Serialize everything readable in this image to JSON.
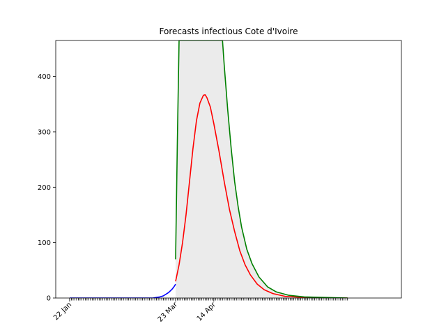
{
  "chart_data": {
    "type": "line",
    "title": "Forecasts infectious Cote d'Ivoire",
    "xlabel": "",
    "ylabel": "",
    "x_ticks": [
      {
        "label": "22 Jan",
        "date": "2020-01-22"
      },
      {
        "label": "23 Mar",
        "date": "2020-03-23"
      },
      {
        "label": "14 Apr",
        "date": "2020-04-14"
      }
    ],
    "xlim": [
      "2020-01-14",
      "2020-07-31"
    ],
    "ylim": [
      0,
      465
    ],
    "y_ticks": [
      0,
      100,
      200,
      300,
      400
    ],
    "grid": false,
    "legend": "none",
    "series": [
      {
        "color": "#0000ff",
        "style": "observed",
        "points": [
          [
            "2020-01-22",
            0
          ],
          [
            "2020-02-15",
            0
          ],
          [
            "2020-03-01",
            0
          ],
          [
            "2020-03-10",
            0
          ],
          [
            "2020-03-12",
            1
          ],
          [
            "2020-03-14",
            2
          ],
          [
            "2020-03-16",
            4
          ],
          [
            "2020-03-17",
            6
          ],
          [
            "2020-03-18",
            8
          ],
          [
            "2020-03-19",
            10
          ],
          [
            "2020-03-20",
            13
          ],
          [
            "2020-03-21",
            16
          ],
          [
            "2020-03-22",
            20
          ],
          [
            "2020-03-23",
            25
          ]
        ]
      },
      {
        "color": "#ff0000",
        "style": "forecast",
        "points": [
          [
            "2020-03-23",
            30
          ],
          [
            "2020-03-25",
            60
          ],
          [
            "2020-03-27",
            100
          ],
          [
            "2020-03-29",
            150
          ],
          [
            "2020-03-31",
            210
          ],
          [
            "2020-04-02",
            270
          ],
          [
            "2020-04-04",
            320
          ],
          [
            "2020-04-06",
            352
          ],
          [
            "2020-04-08",
            366
          ],
          [
            "2020-04-09",
            367
          ],
          [
            "2020-04-10",
            362
          ],
          [
            "2020-04-12",
            345
          ],
          [
            "2020-04-14",
            315
          ],
          [
            "2020-04-17",
            265
          ],
          [
            "2020-04-20",
            210
          ],
          [
            "2020-04-23",
            160
          ],
          [
            "2020-04-26",
            120
          ],
          [
            "2020-04-29",
            85
          ],
          [
            "2020-05-02",
            60
          ],
          [
            "2020-05-05",
            42
          ],
          [
            "2020-05-09",
            25
          ],
          [
            "2020-05-13",
            15
          ],
          [
            "2020-05-18",
            8
          ],
          [
            "2020-05-25",
            3
          ],
          [
            "2020-06-05",
            1
          ],
          [
            "2020-06-30",
            0
          ]
        ]
      },
      {
        "color": "#008000",
        "style": "upper bound",
        "points": [
          [
            "2020-03-23",
            70
          ],
          [
            "2020-03-24",
            280
          ],
          [
            "2020-03-25",
            465
          ],
          [
            "2020-04-19",
            465
          ],
          [
            "2020-04-20",
            420
          ],
          [
            "2020-04-22",
            340
          ],
          [
            "2020-04-24",
            270
          ],
          [
            "2020-04-26",
            210
          ],
          [
            "2020-04-28",
            165
          ],
          [
            "2020-04-30",
            128
          ],
          [
            "2020-05-03",
            88
          ],
          [
            "2020-05-06",
            62
          ],
          [
            "2020-05-10",
            38
          ],
          [
            "2020-05-15",
            20
          ],
          [
            "2020-05-20",
            11
          ],
          [
            "2020-05-27",
            5
          ],
          [
            "2020-06-05",
            2
          ],
          [
            "2020-06-30",
            0
          ]
        ]
      }
    ],
    "band": {
      "color": "#ebebeb",
      "from": "2020-03-23",
      "to": "2020-06-30",
      "lower": 0,
      "upper_series": 2
    }
  }
}
